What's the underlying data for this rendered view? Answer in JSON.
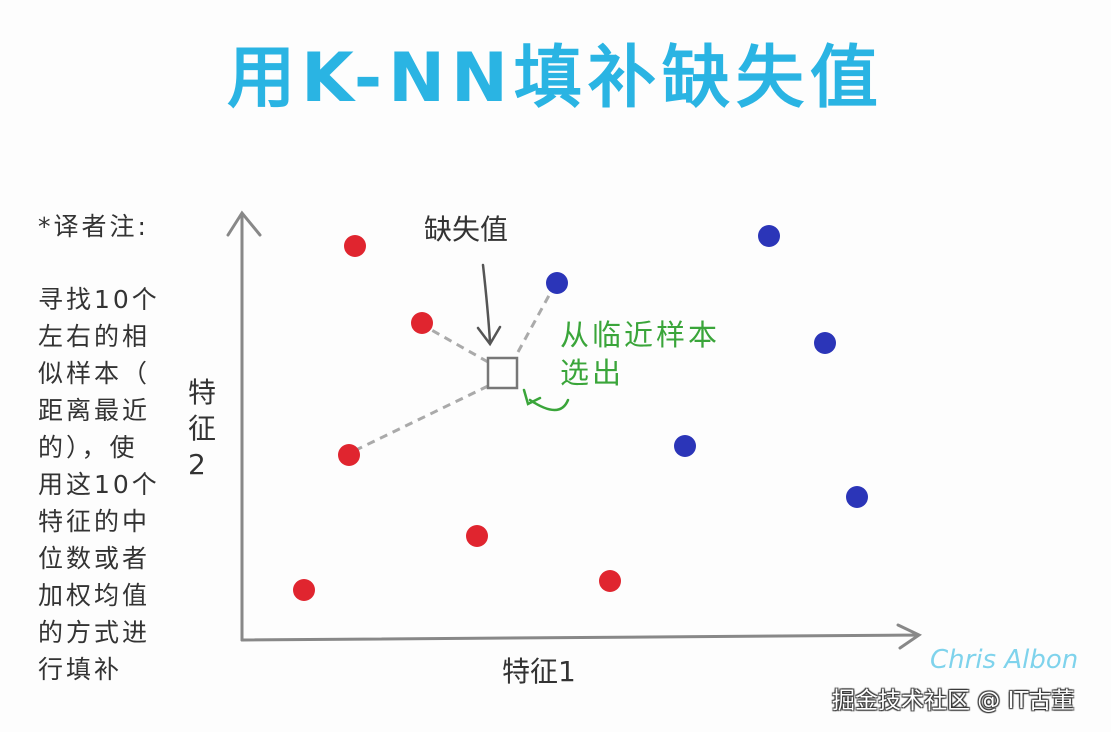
{
  "title": "用K-NN填补缺失值",
  "note": {
    "heading": "*译者注:",
    "lines": [
      "寻找10个",
      "左右的相",
      "似样本（",
      "距离最近",
      "的），使",
      "用这10个",
      "特征的中",
      "位数或者",
      "加权均值",
      "的方式进",
      "行填补"
    ]
  },
  "axes": {
    "x_label": "特征1",
    "y_label": "特征2"
  },
  "annotations": {
    "missing_value": "缺失值",
    "select_from_neighbors": [
      "从临近样本",
      "选出"
    ]
  },
  "colors": {
    "title": "#2ab4e3",
    "class_a": "#e0252f",
    "class_b": "#2b35b8",
    "annotation_green": "#3aa53a"
  },
  "signature": "Chris Albon",
  "watermark": "掘金技术社区 @ IT古董"
}
